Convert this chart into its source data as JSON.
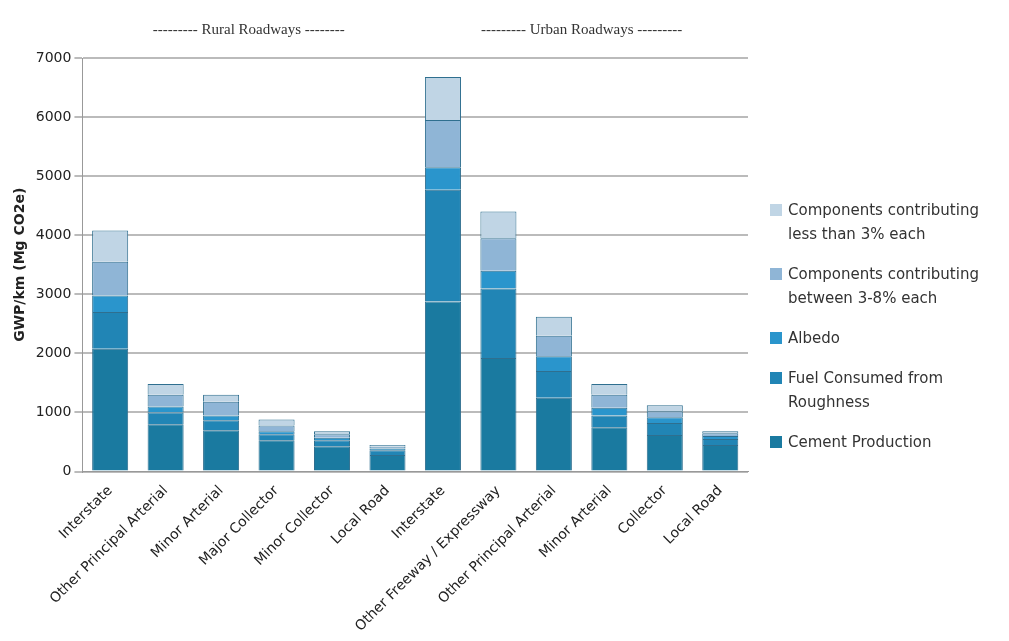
{
  "chart_data": {
    "type": "bar",
    "stacked": true,
    "ylabel": "GWP/km (Mg CO2e)",
    "categories": [
      "Interstate",
      "Other Principal Arterial",
      "Minor Arterial",
      "Major Collector",
      "Minor Collector",
      "Local Road",
      "Interstate",
      "Other Freeway / Expressway",
      "Other Principal Arterial",
      "Minor Arterial",
      "Collector",
      "Local Road"
    ],
    "series": [
      {
        "name": "Cement Production",
        "color": "#1a7aa0",
        "values": [
          2080,
          800,
          700,
          530,
          430,
          280,
          2880,
          1920,
          1250,
          750,
          620,
          450
        ]
      },
      {
        "name": "Fuel Consumed from Roughness",
        "color": "#2185b5",
        "values": [
          620,
          200,
          170,
          100,
          100,
          80,
          1890,
          1180,
          450,
          200,
          200,
          100
        ]
      },
      {
        "name": "Albedo",
        "color": "#2a95cc",
        "values": [
          280,
          100,
          80,
          50,
          40,
          30,
          380,
          300,
          250,
          130,
          100,
          50
        ]
      },
      {
        "name": "Components contributing between 3-8% each",
        "color": "#8fb5d6",
        "values": [
          570,
          200,
          230,
          100,
          60,
          30,
          800,
          550,
          350,
          220,
          100,
          50
        ]
      },
      {
        "name": "Components contributing less than 3% each",
        "color": "#c0d5e5",
        "values": [
          530,
          180,
          120,
          100,
          50,
          30,
          730,
          450,
          320,
          180,
          100,
          30
        ]
      }
    ],
    "ylim": [
      0,
      7000
    ],
    "yticks": [
      0,
      1000,
      2000,
      3000,
      4000,
      5000,
      6000,
      7000
    ],
    "grid": "y",
    "legend": "right",
    "annotations": [
      "--------- Rural Roadways --------",
      "--------- Urban Roadways ---------"
    ]
  }
}
